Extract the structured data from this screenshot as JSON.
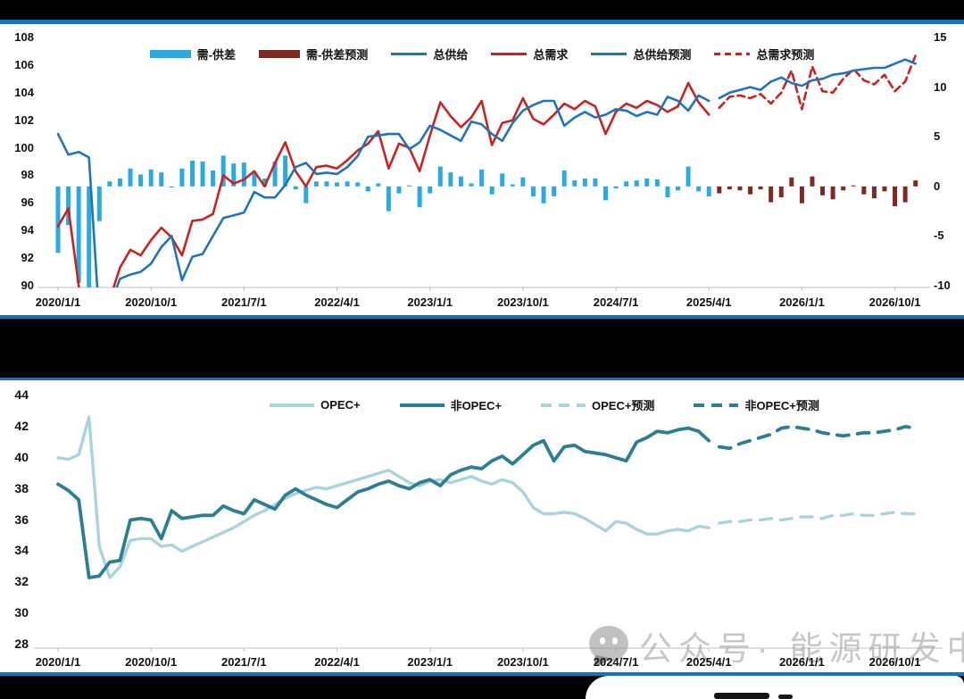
{
  "watermark": {
    "text": "公众号· 能源研发中心",
    "icon": "wechat-logo-icon"
  },
  "x_axis": {
    "tick_labels": [
      "2020/1/1",
      "2020/10/1",
      "2021/7/1",
      "2022/4/1",
      "2023/1/1",
      "2023/10/1",
      "2024/7/1",
      "2025/4/1",
      "2026/1/1",
      "2026/10/1"
    ],
    "tick_month_indices": [
      0,
      9,
      18,
      27,
      36,
      45,
      54,
      63,
      72,
      81
    ],
    "months_total": 84,
    "history_months": 64
  },
  "colors": {
    "diff_bar": "#29abe2",
    "diff_forecast_bar": "#7e2a23",
    "supply_line": "#2074b8",
    "demand_line": "#c9231f",
    "opec_line": "#abd3de",
    "nonopec_line": "#2c7e93",
    "panel_rule": "#1074c2",
    "axis_line": "#bfbfbf"
  },
  "chart_data": [
    {
      "type": "bar+line",
      "title": "",
      "legend": [
        {
          "label": "需-供差",
          "style": "bar",
          "color": "#29abe2"
        },
        {
          "label": "需-供差预测",
          "style": "bar",
          "color": "#7e2a23"
        },
        {
          "label": "总供给",
          "style": "line",
          "color": "#2074b8"
        },
        {
          "label": "总需求",
          "style": "line",
          "color": "#c9231f"
        },
        {
          "label": "总供给预测",
          "style": "line",
          "color": "#2074b8"
        },
        {
          "label": "总需求预测",
          "style": "dashed",
          "color": "#c9231f"
        }
      ],
      "y_left": {
        "min": 90,
        "max": 108,
        "step": 2,
        "ticks": [
          108,
          106,
          104,
          102,
          100,
          98,
          96,
          94,
          92,
          90
        ]
      },
      "y_right": {
        "min": -10,
        "max": 15,
        "step": 5,
        "ticks": [
          15,
          10,
          5,
          0,
          -5,
          -10
        ]
      },
      "series": {
        "supply": [
          101.0,
          99.5,
          99.7,
          99.3,
          87.5,
          88.5,
          90.5,
          90.8,
          91.0,
          91.6,
          92.8,
          93.6,
          90.4,
          92.1,
          92.3,
          93.6,
          94.9,
          95.1,
          95.3,
          96.8,
          96.4,
          96.4,
          97.3,
          98.6,
          98.9,
          98.1,
          98.2,
          98.1,
          98.6,
          99.4,
          100.8,
          100.9,
          101.0,
          101.0,
          99.9,
          100.4,
          101.6,
          101.3,
          100.9,
          100.5,
          101.9,
          101.7,
          101.0,
          100.5,
          101.8,
          102.7,
          103.1,
          103.4,
          103.4,
          101.6,
          102.2,
          102.6,
          102.2,
          102.4,
          102.8,
          102.7,
          102.3,
          102.6,
          102.4,
          103.7,
          103.4,
          102.7,
          103.8,
          103.4
        ],
        "demand": [
          94.3,
          95.6,
          90.0,
          83.5,
          84.0,
          89.0,
          91.3,
          92.6,
          92.2,
          93.3,
          94.2,
          93.5,
          92.2,
          94.7,
          94.8,
          95.2,
          98.0,
          97.4,
          97.7,
          98.3,
          97.2,
          98.9,
          100.4,
          98.3,
          97.2,
          98.6,
          98.7,
          98.5,
          99.1,
          99.8,
          100.3,
          101.2,
          98.5,
          100.3,
          100.0,
          98.3,
          100.9,
          103.3,
          102.3,
          101.5,
          102.2,
          103.4,
          100.2,
          101.8,
          102.0,
          103.6,
          102.1,
          101.7,
          102.4,
          103.2,
          102.8,
          103.4,
          103.0,
          101.0,
          102.6,
          103.2,
          102.9,
          103.4,
          103.1,
          102.6,
          103.0,
          104.7,
          103.3,
          102.4
        ],
        "diff": [
          -6.7,
          -3.9,
          -9.7,
          -15.8,
          -3.5,
          0.5,
          0.8,
          1.8,
          1.2,
          1.7,
          1.4,
          -0.1,
          1.8,
          2.6,
          2.5,
          1.6,
          3.1,
          2.3,
          2.4,
          1.5,
          0.8,
          2.5,
          3.1,
          -0.3,
          -1.7,
          0.5,
          0.5,
          0.4,
          0.5,
          0.4,
          -0.5,
          0.3,
          -2.5,
          -0.7,
          0.1,
          -2.1,
          -0.7,
          2.0,
          1.4,
          1.0,
          0.3,
          1.7,
          -0.8,
          1.3,
          0.2,
          0.9,
          -1.0,
          -1.7,
          -1.0,
          1.6,
          0.6,
          0.8,
          0.8,
          -1.4,
          -0.2,
          0.5,
          0.6,
          0.8,
          0.7,
          -1.1,
          -0.4,
          2.0,
          -0.5,
          -1.0
        ],
        "supply_forecast": [
          103.6,
          104.0,
          104.2,
          104.4,
          104.2,
          104.8,
          105.1,
          104.7,
          104.5,
          104.9,
          105.0,
          105.3,
          105.4,
          105.6,
          105.7,
          105.8,
          105.8,
          106.1,
          106.4,
          106.1
        ],
        "demand_forecast": [
          102.9,
          103.7,
          103.8,
          103.6,
          103.9,
          103.2,
          104.0,
          105.6,
          102.8,
          105.9,
          104.1,
          104.0,
          105.0,
          105.7,
          104.9,
          104.6,
          105.3,
          104.1,
          104.8,
          106.7
        ],
        "diff_forecast": [
          -0.7,
          -0.3,
          -0.4,
          -0.8,
          -0.3,
          -1.6,
          -1.1,
          0.9,
          -1.7,
          1.0,
          -0.9,
          -1.3,
          -0.4,
          0.1,
          -0.8,
          -1.2,
          -0.5,
          -2.0,
          -1.6,
          0.6
        ]
      }
    },
    {
      "type": "line",
      "title": "",
      "legend": [
        {
          "label": "OPEC+",
          "style": "line",
          "color": "#abd3de"
        },
        {
          "label": "非OPEC+",
          "style": "line",
          "color": "#2c7e93"
        },
        {
          "label": "OPEC+预测",
          "style": "dashed",
          "color": "#abd3de"
        },
        {
          "label": "非OPEC+预测",
          "style": "dashed",
          "color": "#2c7e93"
        }
      ],
      "y_left": {
        "min": 28,
        "max": 44,
        "step": 2,
        "ticks": [
          44,
          42,
          40,
          38,
          36,
          34,
          32,
          30,
          28
        ]
      },
      "series": {
        "opec": [
          40.0,
          39.9,
          40.2,
          42.6,
          34.3,
          32.3,
          33.0,
          34.7,
          34.8,
          34.8,
          34.3,
          34.4,
          34.0,
          34.3,
          34.6,
          34.9,
          35.2,
          35.5,
          35.9,
          36.3,
          36.6,
          37.0,
          37.4,
          37.7,
          37.9,
          38.1,
          38.0,
          38.2,
          38.4,
          38.6,
          38.8,
          39.0,
          39.2,
          38.8,
          38.4,
          38.2,
          38.5,
          38.6,
          38.4,
          38.6,
          38.8,
          38.5,
          38.3,
          38.6,
          38.4,
          37.8,
          36.8,
          36.4,
          36.4,
          36.5,
          36.4,
          36.1,
          35.7,
          35.3,
          35.9,
          35.8,
          35.4,
          35.1,
          35.1,
          35.3,
          35.4,
          35.3,
          35.6,
          35.5
        ],
        "nonopec": [
          38.3,
          37.9,
          37.3,
          32.3,
          32.4,
          33.3,
          33.4,
          36.0,
          36.1,
          36.0,
          34.8,
          36.6,
          36.1,
          36.2,
          36.3,
          36.3,
          36.9,
          36.6,
          36.4,
          37.3,
          37.0,
          36.7,
          37.6,
          38.0,
          37.6,
          37.3,
          37.0,
          36.8,
          37.3,
          37.8,
          38.0,
          38.3,
          38.5,
          38.2,
          38.0,
          38.4,
          38.6,
          38.2,
          38.9,
          39.2,
          39.4,
          39.3,
          39.8,
          40.1,
          39.6,
          40.2,
          40.8,
          41.1,
          39.8,
          40.7,
          40.8,
          40.4,
          40.3,
          40.2,
          40.0,
          39.8,
          41.0,
          41.3,
          41.7,
          41.6,
          41.8,
          41.9,
          41.7,
          41.1
        ],
        "opec_forecast": [
          35.8,
          35.9,
          35.9,
          36.0,
          36.0,
          36.1,
          36.0,
          36.1,
          36.2,
          36.2,
          36.1,
          36.3,
          36.3,
          36.4,
          36.3,
          36.3,
          36.4,
          36.5,
          36.4,
          36.4
        ],
        "nonopec_forecast": [
          40.7,
          40.6,
          40.9,
          41.1,
          41.3,
          41.5,
          41.9,
          42.0,
          41.9,
          41.8,
          41.6,
          41.5,
          41.4,
          41.5,
          41.6,
          41.6,
          41.7,
          41.8,
          42.0,
          41.9
        ]
      }
    }
  ]
}
